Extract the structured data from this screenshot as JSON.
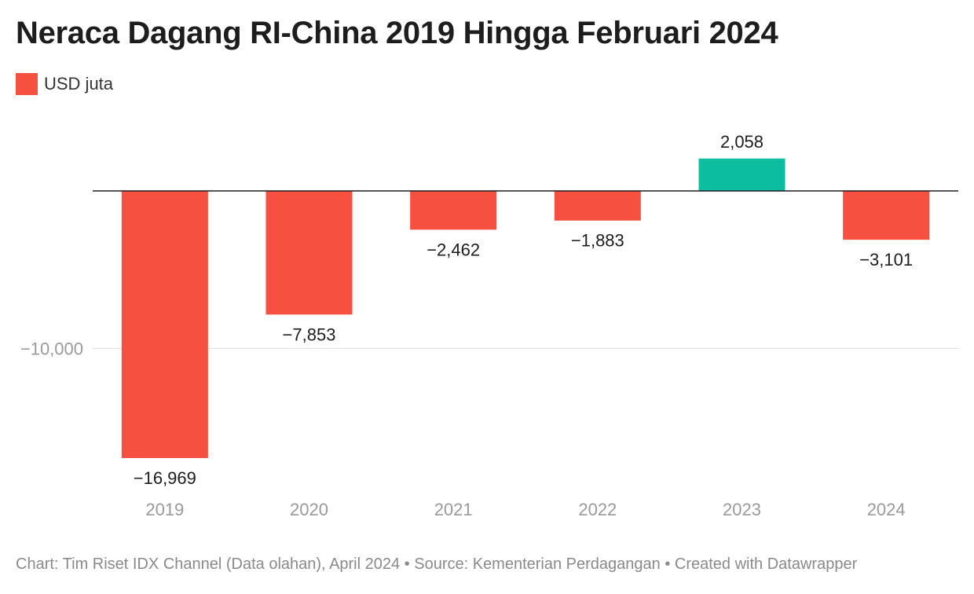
{
  "chart_data": {
    "type": "bar",
    "title": "Neraca Dagang RI-China 2019 Hingga Februari 2024",
    "categories": [
      "2019",
      "2020",
      "2021",
      "2022",
      "2023",
      "2024"
    ],
    "series": [
      {
        "name": "USD juta",
        "values": [
          -16969,
          -7853,
          -2462,
          -1883,
          2058,
          -3101
        ]
      }
    ],
    "value_labels": [
      "−16,969",
      "−7,853",
      "−2,462",
      "−1,883",
      "2,058",
      "−3,101"
    ],
    "y_ticks": [
      {
        "value": -10000,
        "label": "−10,000"
      }
    ],
    "ylim": [
      -17500,
      3000
    ],
    "xlabel": "",
    "ylabel": "",
    "grid": true,
    "legend_position": "top-left",
    "colors": {
      "negative": "#f65040",
      "positive": "#0dbd9f",
      "zero_line": "#1d1d1d",
      "grid": "#dddddd",
      "tick_label": "#9a9a9a",
      "value_label": "#1d1d1d"
    }
  },
  "footer": "Chart: Tim Riset IDX Channel (Data olahan), April 2024 • Source: Kementerian Perdagangan • Created with Datawrapper"
}
